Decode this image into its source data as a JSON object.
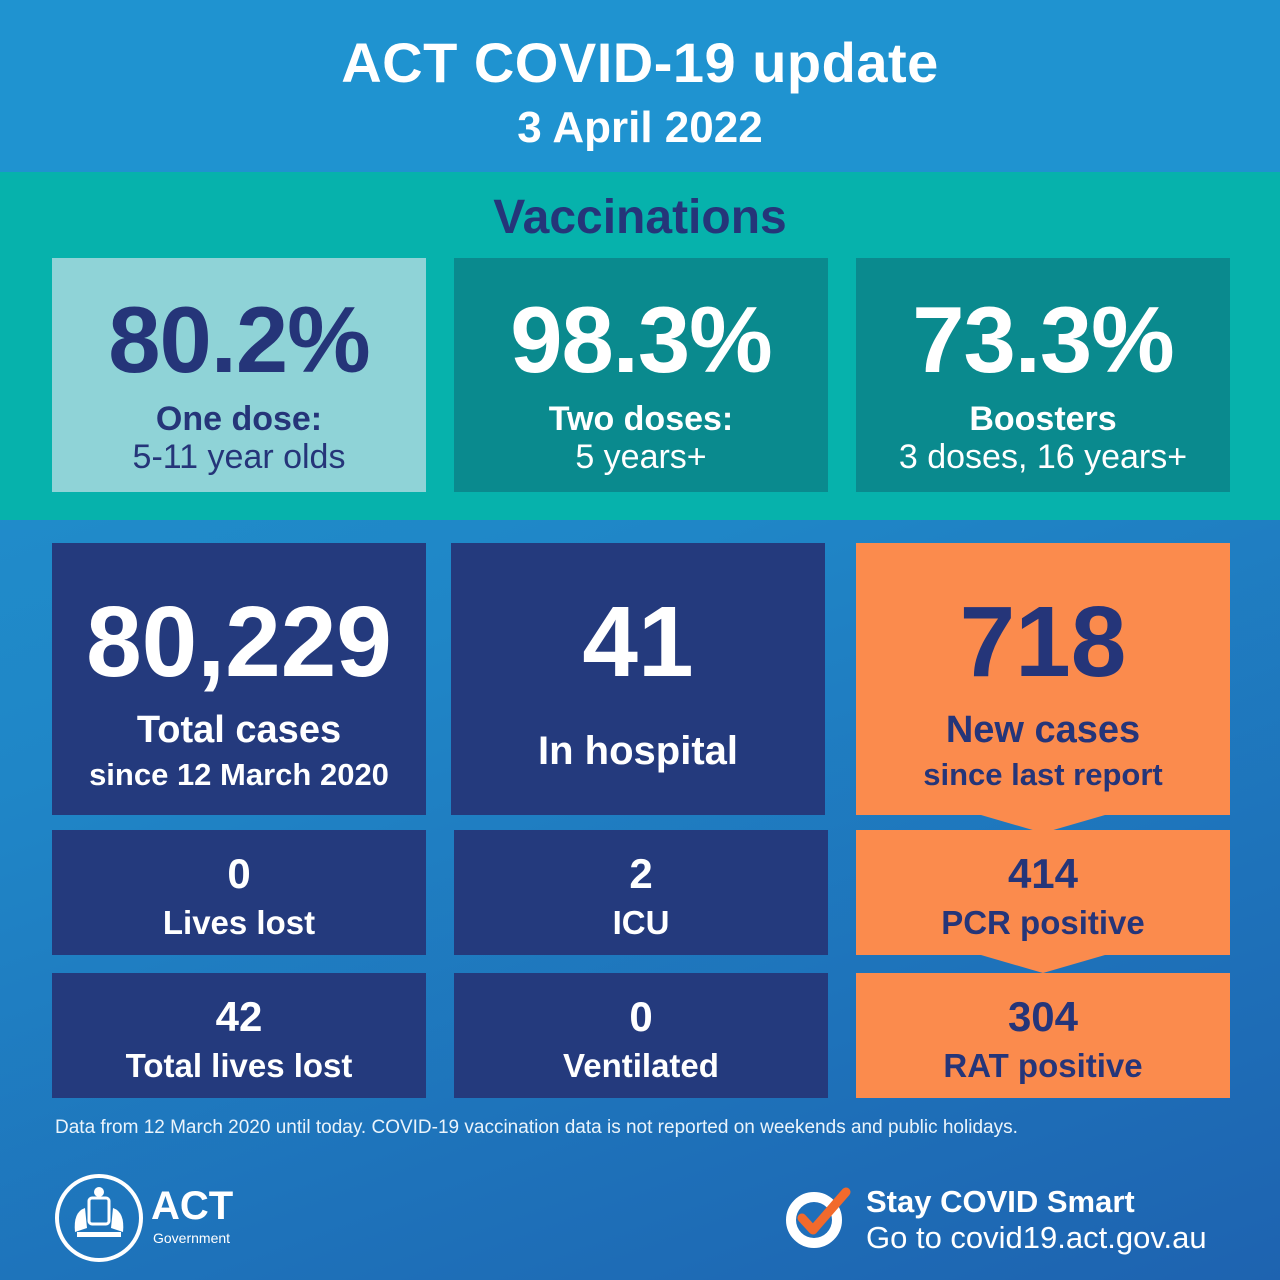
{
  "header": {
    "title": "ACT COVID-19 update",
    "date": "3 April 2022"
  },
  "vaccinations": {
    "heading": "Vaccinations",
    "items": [
      {
        "value": "80.2%",
        "line1": "One dose:",
        "line2": "5-11 year olds"
      },
      {
        "value": "98.3%",
        "line1": "Two doses:",
        "line2": "5 years+"
      },
      {
        "value": "73.3%",
        "line1": "Boosters",
        "line2": "3 doses, 16 years+"
      }
    ]
  },
  "stats": {
    "total_cases": {
      "value": "80,229",
      "line1": "Total cases",
      "line2": "since 12 March 2020"
    },
    "in_hospital": {
      "value": "41",
      "label": "In hospital"
    },
    "new_cases": {
      "value": "718",
      "line1": "New cases",
      "line2": "since last report"
    },
    "lives_lost": {
      "value": "0",
      "label": "Lives lost"
    },
    "icu": {
      "value": "2",
      "label": "ICU"
    },
    "pcr": {
      "value": "414",
      "label": "PCR positive"
    },
    "total_lives_lost": {
      "value": "42",
      "label": "Total lives lost"
    },
    "ventilated": {
      "value": "0",
      "label": "Ventilated"
    },
    "rat": {
      "value": "304",
      "label": "RAT positive"
    }
  },
  "footnote": "Data from 12 March 2020 until today.  COVID-19 vaccination data is not reported on weekends and public holidays.",
  "logo": {
    "name": "ACT",
    "sub": "Government"
  },
  "cta": {
    "title": "Stay COVID Smart",
    "url": "Go to covid19.act.gov.au"
  },
  "colors": {
    "header": "#1f93d0",
    "teal_band": "#06b2ac",
    "light_teal": "#8fd3d7",
    "dark_teal": "#0a8a8e",
    "navy": "#243a7d",
    "orange": "#fb8b4d",
    "heading_navy": "#253579"
  }
}
